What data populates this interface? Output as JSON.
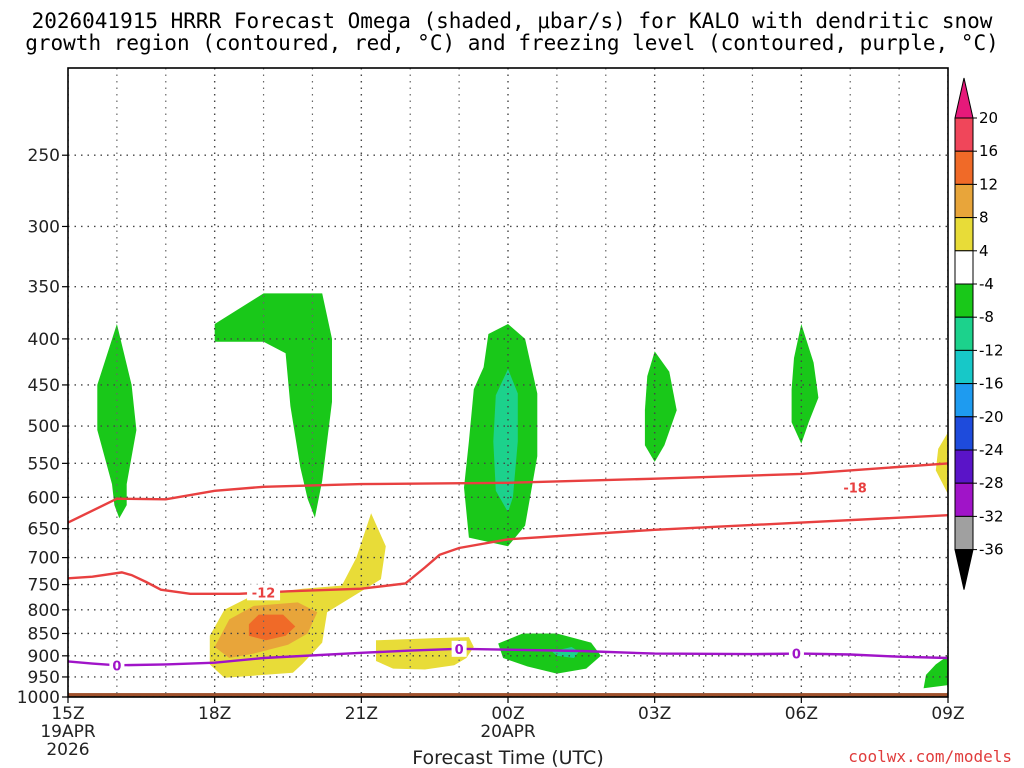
{
  "chart_data": {
    "type": "contour",
    "title_lines": [
      "2026041915 HRRR Forecast Omega (shaded, μbar/s) for KALO with dendritic snow",
      "growth region (contoured, red, °C) and freezing level (contoured, purple, °C)"
    ],
    "xlabel": "Forecast Time (UTC)",
    "ylabel": "",
    "x_hours": [
      0,
      3,
      6,
      9,
      12,
      15,
      18
    ],
    "x_ticks": [
      {
        "h": 0,
        "label": "15Z",
        "sub": [
          "19APR",
          "2026"
        ]
      },
      {
        "h": 3,
        "label": "18Z",
        "sub": []
      },
      {
        "h": 6,
        "label": "21Z",
        "sub": []
      },
      {
        "h": 9,
        "label": "00Z",
        "sub": [
          "20APR"
        ]
      },
      {
        "h": 12,
        "label": "03Z",
        "sub": []
      },
      {
        "h": 15,
        "label": "06Z",
        "sub": []
      },
      {
        "h": 18,
        "label": "09Z",
        "sub": []
      }
    ],
    "pressure_ticks": [
      250,
      300,
      350,
      400,
      450,
      500,
      550,
      600,
      650,
      700,
      750,
      800,
      850,
      900,
      950,
      1000
    ],
    "pressure_range": [
      200,
      1000
    ],
    "ground_pressure": 990,
    "colorbar": {
      "labels": [
        "20",
        "16",
        "12",
        "8",
        "4",
        "-4",
        "-8",
        "-12",
        "-16",
        "-20",
        "-24",
        "-28",
        "-32",
        "-36"
      ],
      "colors": [
        "#f0465a",
        "#f06a28",
        "#e8a53a",
        "#e8dc38",
        "#ffffff",
        "#19c819",
        "#1cd28c",
        "#17c8c8",
        "#1e9bf0",
        "#1e4bdc",
        "#5a14c8",
        "#a014c8",
        "#a0a0a0"
      ],
      "top_arrow_color": "#e6197a",
      "bottom_arrow_color": "#000000"
    },
    "contours": {
      "minus18": {
        "label": "-18",
        "color": "#e84040",
        "label_h": 16.1,
        "label_p": 585,
        "points": [
          [
            0,
            640
          ],
          [
            1,
            602
          ],
          [
            2,
            603
          ],
          [
            3,
            590
          ],
          [
            4,
            584
          ],
          [
            6,
            580
          ],
          [
            9,
            578
          ],
          [
            12,
            572
          ],
          [
            15,
            565
          ],
          [
            18,
            550
          ]
        ]
      },
      "minus12": {
        "label": "-12",
        "color": "#e84040",
        "label_h": 4.0,
        "label_p": 765,
        "points": [
          [
            0,
            738
          ],
          [
            0.5,
            735
          ],
          [
            1.1,
            727
          ],
          [
            1.3,
            732
          ],
          [
            1.6,
            745
          ],
          [
            1.9,
            760
          ],
          [
            2.5,
            768
          ],
          [
            3.5,
            768
          ],
          [
            4.5,
            763
          ],
          [
            6,
            758
          ],
          [
            6.9,
            748
          ],
          [
            7.3,
            718
          ],
          [
            7.6,
            695
          ],
          [
            8,
            683
          ],
          [
            9,
            668
          ],
          [
            12,
            652
          ],
          [
            15,
            640
          ],
          [
            18,
            628
          ]
        ]
      },
      "zero": {
        "label": "0",
        "color": "#a014c8",
        "label_hs": [
          1.0,
          8.0,
          14.9
        ],
        "points": [
          [
            0,
            913
          ],
          [
            0.5,
            918
          ],
          [
            1,
            922
          ],
          [
            2,
            920
          ],
          [
            3,
            916
          ],
          [
            4,
            905
          ],
          [
            6,
            893
          ],
          [
            7,
            888
          ],
          [
            8,
            884
          ],
          [
            9,
            886
          ],
          [
            10.5,
            889
          ],
          [
            12,
            895
          ],
          [
            14,
            896
          ],
          [
            15,
            895
          ],
          [
            16,
            897
          ],
          [
            17,
            902
          ],
          [
            18,
            905
          ]
        ]
      }
    },
    "omega_regions": {
      "green": [
        [
          [
            1,
            385
          ],
          [
            1.3,
            450
          ],
          [
            1.4,
            505
          ],
          [
            1.2,
            580
          ],
          [
            1.2,
            612
          ],
          [
            1.05,
            633
          ],
          [
            0.95,
            612
          ],
          [
            0.9,
            580
          ],
          [
            0.6,
            505
          ],
          [
            0.6,
            450
          ]
        ],
        [
          [
            3,
            385
          ],
          [
            4,
            356
          ],
          [
            5.2,
            356
          ],
          [
            5.4,
            400
          ],
          [
            5.4,
            470
          ],
          [
            5.2,
            575
          ],
          [
            5.05,
            632
          ],
          [
            4.9,
            602
          ],
          [
            4.75,
            555
          ],
          [
            4.55,
            475
          ],
          [
            4.45,
            415
          ],
          [
            4,
            403
          ],
          [
            3,
            403
          ]
        ],
        [
          [
            8.5,
            430
          ],
          [
            8.6,
            395
          ],
          [
            9,
            385
          ],
          [
            9.35,
            400
          ],
          [
            9.6,
            460
          ],
          [
            9.6,
            540
          ],
          [
            9.35,
            645
          ],
          [
            9,
            680
          ],
          [
            8.2,
            665
          ],
          [
            8.1,
            585
          ],
          [
            8.2,
            520
          ],
          [
            8.3,
            455
          ]
        ],
        [
          [
            12,
            413
          ],
          [
            12.3,
            435
          ],
          [
            12.45,
            480
          ],
          [
            12.2,
            525
          ],
          [
            12,
            548
          ],
          [
            11.8,
            525
          ],
          [
            11.8,
            480
          ],
          [
            11.85,
            440
          ]
        ],
        [
          [
            15,
            385
          ],
          [
            15.25,
            425
          ],
          [
            15.35,
            465
          ],
          [
            15.15,
            495
          ],
          [
            15,
            523
          ],
          [
            14.8,
            495
          ],
          [
            14.8,
            455
          ],
          [
            14.85,
            420
          ]
        ],
        [
          [
            8.8,
            872
          ],
          [
            9.3,
            850
          ],
          [
            10,
            850
          ],
          [
            10.7,
            870
          ],
          [
            10.9,
            900
          ],
          [
            10.6,
            930
          ],
          [
            10,
            942
          ],
          [
            9.4,
            925
          ],
          [
            8.9,
            905
          ]
        ],
        [
          [
            18,
            900
          ],
          [
            18,
            970
          ],
          [
            17.5,
            978
          ],
          [
            17.55,
            945
          ],
          [
            17.75,
            920
          ]
        ]
      ],
      "teal": [
        [
          [
            9,
            432
          ],
          [
            9.2,
            460
          ],
          [
            9.2,
            520
          ],
          [
            9.1,
            600
          ],
          [
            9,
            623
          ],
          [
            8.75,
            590
          ],
          [
            8.7,
            520
          ],
          [
            8.75,
            462
          ]
        ],
        [
          [
            10.3,
            880
          ],
          [
            10.45,
            890
          ],
          [
            10.35,
            905
          ],
          [
            10,
            900
          ],
          [
            9.9,
            890
          ]
        ]
      ],
      "yellow": [
        [
          [
            2.9,
            855
          ],
          [
            3.2,
            800
          ],
          [
            3.8,
            770
          ],
          [
            4.8,
            758
          ],
          [
            5.6,
            752
          ],
          [
            5.9,
            700
          ],
          [
            6.2,
            625
          ],
          [
            6.5,
            680
          ],
          [
            6.4,
            740
          ],
          [
            5.3,
            805
          ],
          [
            5.2,
            870
          ],
          [
            4.8,
            918
          ],
          [
            4.6,
            940
          ],
          [
            3.9,
            946
          ],
          [
            3.2,
            952
          ],
          [
            2.9,
            920
          ]
        ],
        [
          [
            6.3,
            865
          ],
          [
            7.5,
            860
          ],
          [
            8.2,
            858
          ],
          [
            8.3,
            880
          ],
          [
            8.15,
            905
          ],
          [
            7.9,
            922
          ],
          [
            7.3,
            932
          ],
          [
            6.65,
            930
          ],
          [
            6.3,
            912
          ],
          [
            6.3,
            890
          ]
        ],
        [
          [
            18,
            508
          ],
          [
            18,
            595
          ],
          [
            17.75,
            560
          ],
          [
            17.8,
            530
          ]
        ]
      ],
      "gold": [
        [
          [
            3,
            880
          ],
          [
            3.3,
            820
          ],
          [
            3.8,
            792
          ],
          [
            4.7,
            785
          ],
          [
            5.1,
            805
          ],
          [
            4.9,
            850
          ],
          [
            4.5,
            875
          ],
          [
            3.8,
            895
          ],
          [
            3.3,
            905
          ]
        ]
      ],
      "orange": [
        [
          [
            3.9,
            810
          ],
          [
            4.4,
            810
          ],
          [
            4.65,
            835
          ],
          [
            4.45,
            855
          ],
          [
            4.05,
            865
          ],
          [
            3.7,
            855
          ],
          [
            3.7,
            830
          ]
        ]
      ]
    }
  },
  "credit": "coolwx.com/models"
}
